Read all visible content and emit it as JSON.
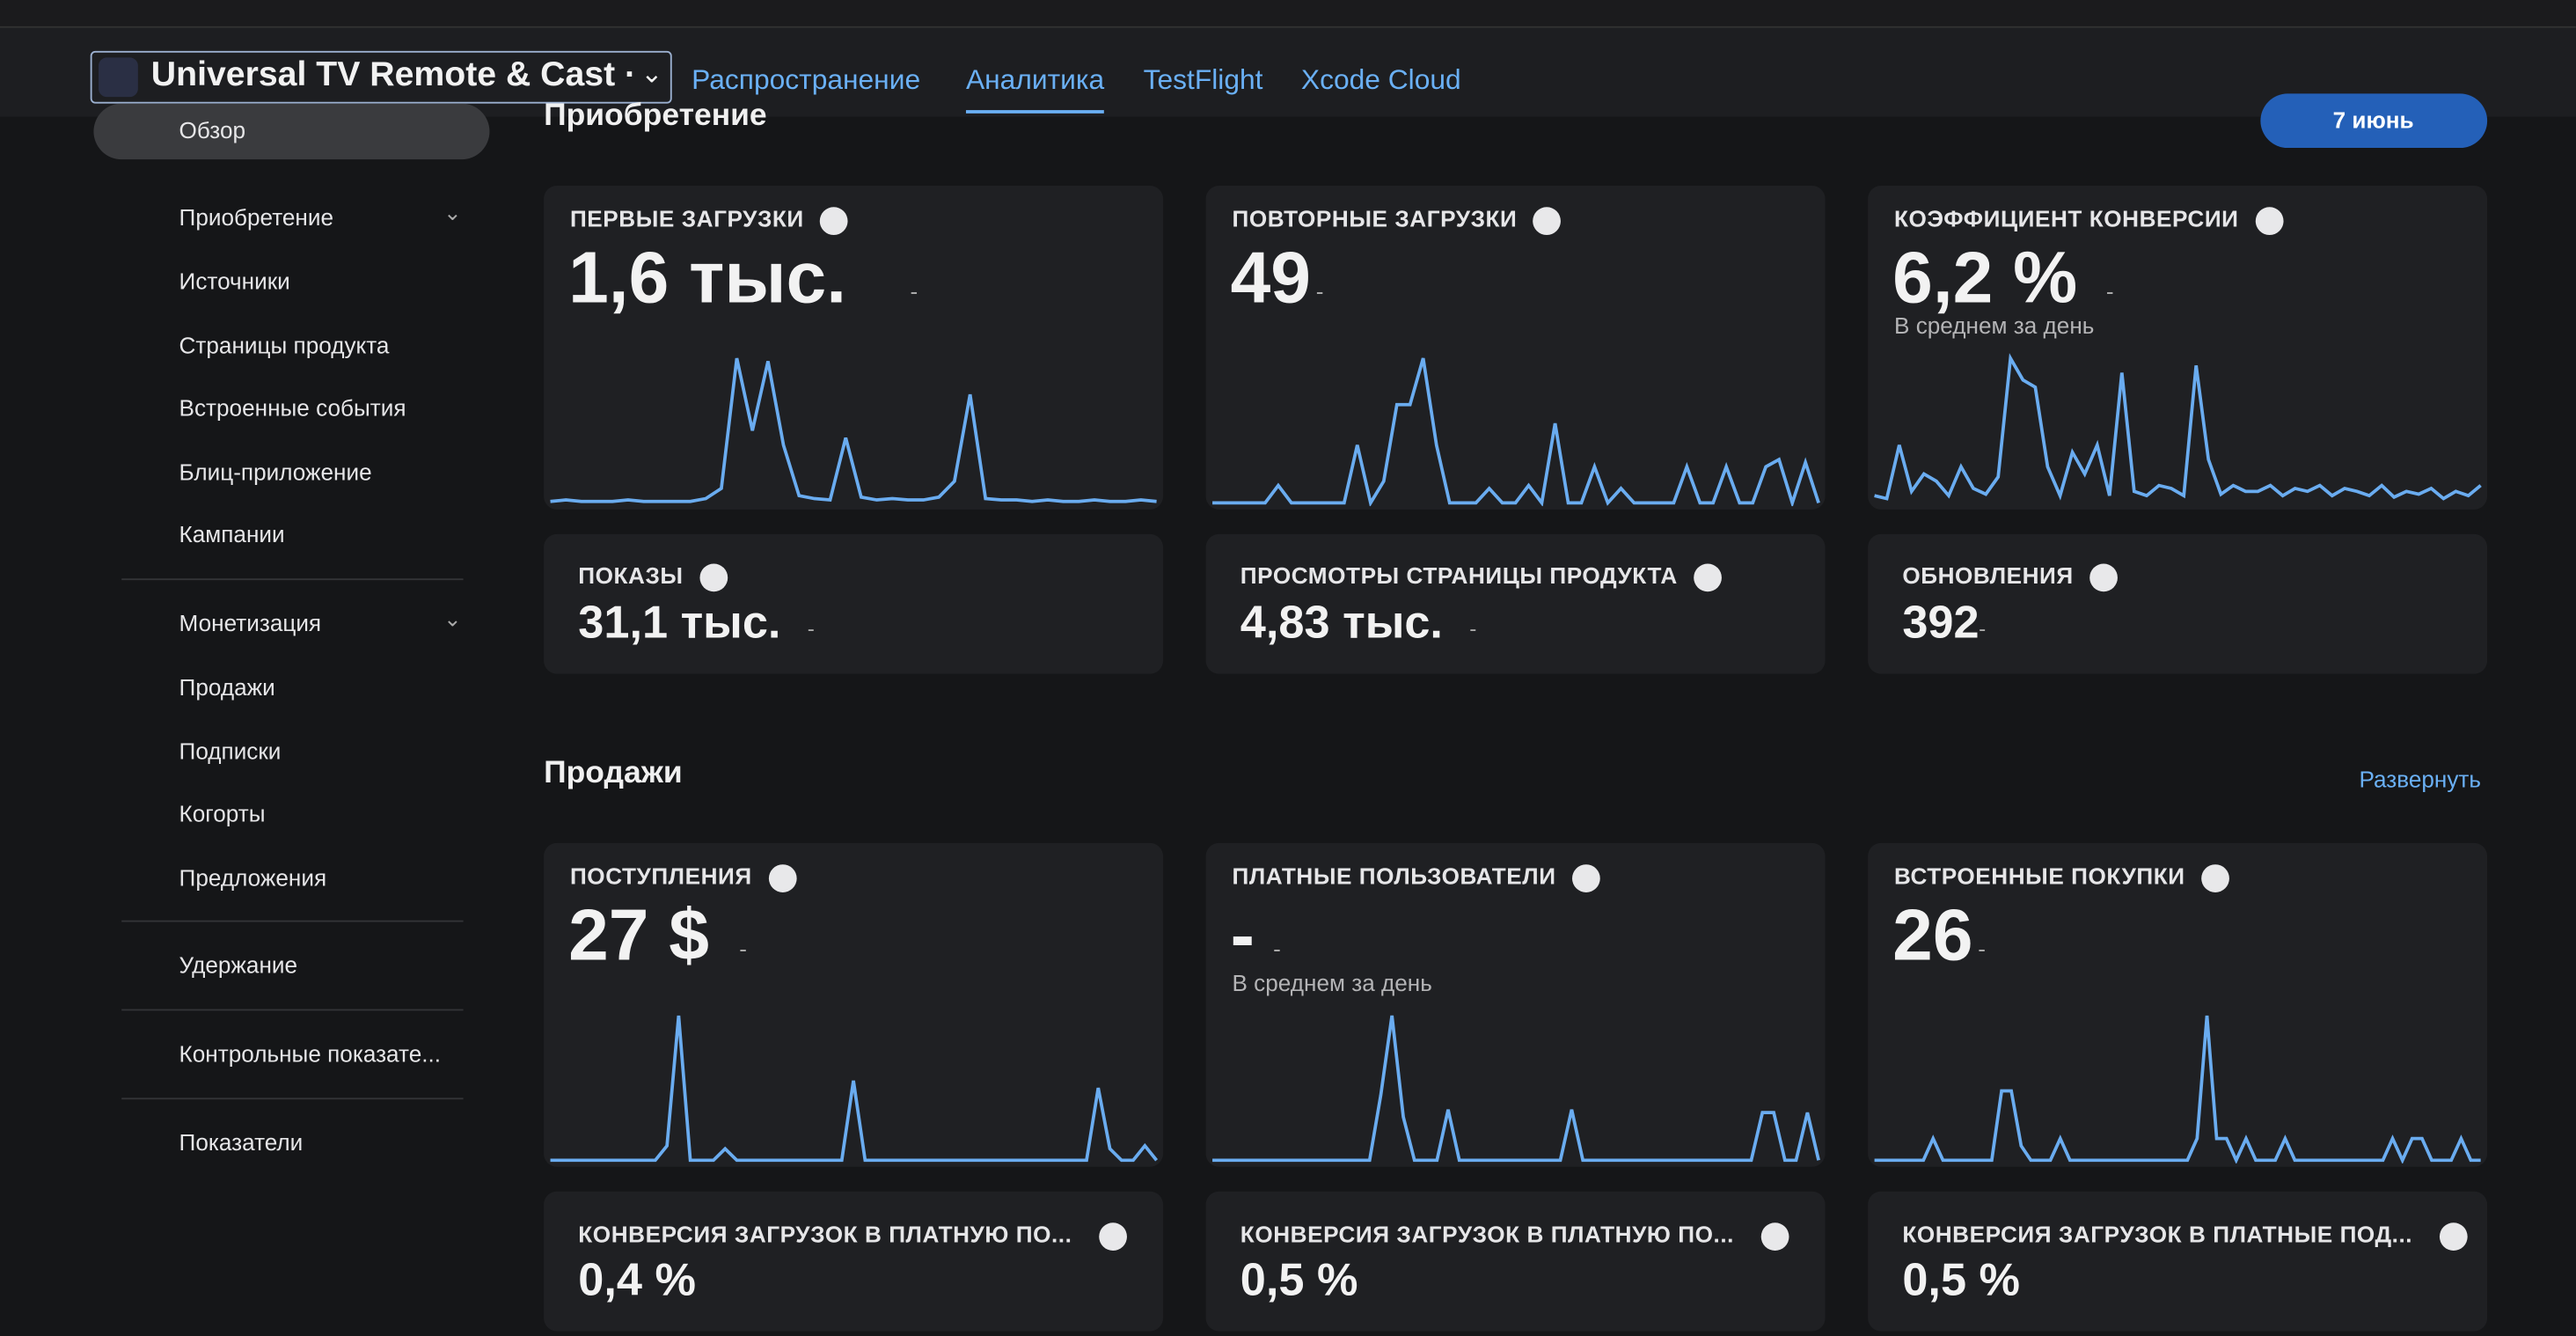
{
  "header": {
    "app_name": "Universal TV Remote & Cast ·",
    "tabs": [
      "Распространение",
      "Аналитика",
      "TestFlight",
      "Xcode Cloud"
    ],
    "active_tab": 1
  },
  "sidebar": {
    "overview": "Обзор",
    "groups": [
      {
        "title": "Приобретение",
        "items": [
          "Источники",
          "Страницы продукта",
          "Встроенные события",
          "Блиц-приложение",
          "Кампании"
        ]
      },
      {
        "title": "Монетизация",
        "items": [
          "Продажи",
          "Подписки",
          "Когорты",
          "Предложения"
        ]
      }
    ],
    "links": [
      "Удержание",
      "Контрольные показате...",
      "Показатели"
    ]
  },
  "sections": [
    {
      "title": "Приобретение",
      "date_button": "7 июнь",
      "cards": [
        {
          "label": "ПЕРВЫЕ ЗАГРУЗКИ",
          "value": "1,6 тыс.",
          "delta": "-",
          "spark": [
            1,
            2,
            1,
            1,
            1,
            2,
            1,
            1,
            1,
            1,
            3,
            10,
            100,
            50,
            98,
            40,
            5,
            3,
            2,
            45,
            4,
            2,
            3,
            2,
            2,
            4,
            15,
            75,
            3,
            2,
            2,
            1,
            2,
            1,
            1,
            2,
            1,
            1,
            2,
            1
          ]
        },
        {
          "label": "ПОВТОРНЫЕ ЗАГРУЗКИ",
          "value": "49",
          "delta": "-",
          "spark": [
            0,
            0,
            0,
            0,
            0,
            12,
            0,
            0,
            0,
            0,
            0,
            40,
            0,
            15,
            68,
            68,
            100,
            40,
            0,
            0,
            0,
            10,
            0,
            0,
            12,
            0,
            55,
            0,
            0,
            25,
            0,
            10,
            0,
            0,
            0,
            0,
            25,
            0,
            0,
            25,
            0,
            0,
            25,
            30,
            0,
            28,
            0
          ]
        },
        {
          "label": "КОЭФФИЦИЕНТ КОНВЕРСИИ",
          "value": "6,2 %",
          "delta": "-",
          "note": "В среднем за день",
          "spark": [
            5,
            3,
            40,
            8,
            20,
            15,
            5,
            25,
            10,
            6,
            18,
            100,
            85,
            80,
            25,
            5,
            35,
            20,
            40,
            5,
            90,
            8,
            5,
            12,
            10,
            5,
            95,
            30,
            6,
            12,
            8,
            8,
            12,
            5,
            10,
            8,
            12,
            5,
            10,
            8,
            5,
            12,
            4,
            8,
            6,
            10,
            3,
            8,
            5,
            12
          ]
        }
      ],
      "small_cards": [
        {
          "label": "ПОКАЗЫ",
          "value": "31,1 тыс.",
          "delta": "-"
        },
        {
          "label": "ПРОСМОТРЫ СТРАНИЦЫ ПРОДУКТА",
          "value": "4,83 тыс.",
          "delta": "-"
        },
        {
          "label": "ОБНОВЛЕНИЯ",
          "value": "392",
          "delta": "-"
        }
      ]
    },
    {
      "title": "Продажи",
      "action": "Развернуть",
      "cards": [
        {
          "label": "ПОСТУПЛЕНИЯ",
          "value": "27 $",
          "delta": "-",
          "spark": [
            0,
            0,
            0,
            0,
            0,
            0,
            0,
            0,
            0,
            0,
            10,
            100,
            0,
            0,
            0,
            8,
            0,
            0,
            0,
            0,
            0,
            0,
            0,
            0,
            0,
            0,
            55,
            0,
            0,
            0,
            0,
            0,
            0,
            0,
            0,
            0,
            0,
            0,
            0,
            0,
            0,
            0,
            0,
            0,
            0,
            0,
            0,
            50,
            8,
            0,
            0,
            10,
            0
          ]
        },
        {
          "label": "ПЛАТНЫЕ ПОЛЬЗОВАТЕЛИ",
          "value": "-",
          "delta": "-",
          "note": "В среднем за день",
          "spark": [
            0,
            0,
            0,
            0,
            0,
            0,
            0,
            0,
            0,
            0,
            0,
            0,
            0,
            0,
            0,
            45,
            100,
            30,
            0,
            0,
            0,
            35,
            0,
            0,
            0,
            0,
            0,
            0,
            0,
            0,
            0,
            0,
            35,
            0,
            0,
            0,
            0,
            0,
            0,
            0,
            0,
            0,
            0,
            0,
            0,
            0,
            0,
            0,
            0,
            33,
            33,
            0,
            0,
            33,
            0
          ]
        },
        {
          "label": "ВСТРОЕННЫЕ ПОКУПКИ",
          "value": "26",
          "delta": "-",
          "spark": [
            0,
            0,
            0,
            0,
            0,
            0,
            15,
            0,
            0,
            0,
            0,
            0,
            0,
            48,
            48,
            10,
            0,
            0,
            0,
            15,
            0,
            0,
            0,
            0,
            0,
            0,
            0,
            0,
            0,
            0,
            0,
            0,
            0,
            15,
            100,
            15,
            15,
            0,
            15,
            0,
            0,
            0,
            15,
            0,
            0,
            0,
            0,
            0,
            0,
            0,
            0,
            0,
            0,
            15,
            0,
            15,
            15,
            0,
            0,
            0,
            15,
            0,
            0
          ]
        }
      ],
      "small_cards": [
        {
          "label": "КОНВЕРСИЯ ЗАГРУЗОК В ПЛАТНУЮ ПО...",
          "value": "0,4 %"
        },
        {
          "label": "КОНВЕРСИЯ ЗАГРУЗОК В ПЛАТНУЮ ПО...",
          "value": "0,5 %"
        },
        {
          "label": "КОНВЕРСИЯ ЗАГРУЗОК В ПЛАТНЫЕ ПОД...",
          "value": "0,5 %"
        }
      ]
    }
  ]
}
